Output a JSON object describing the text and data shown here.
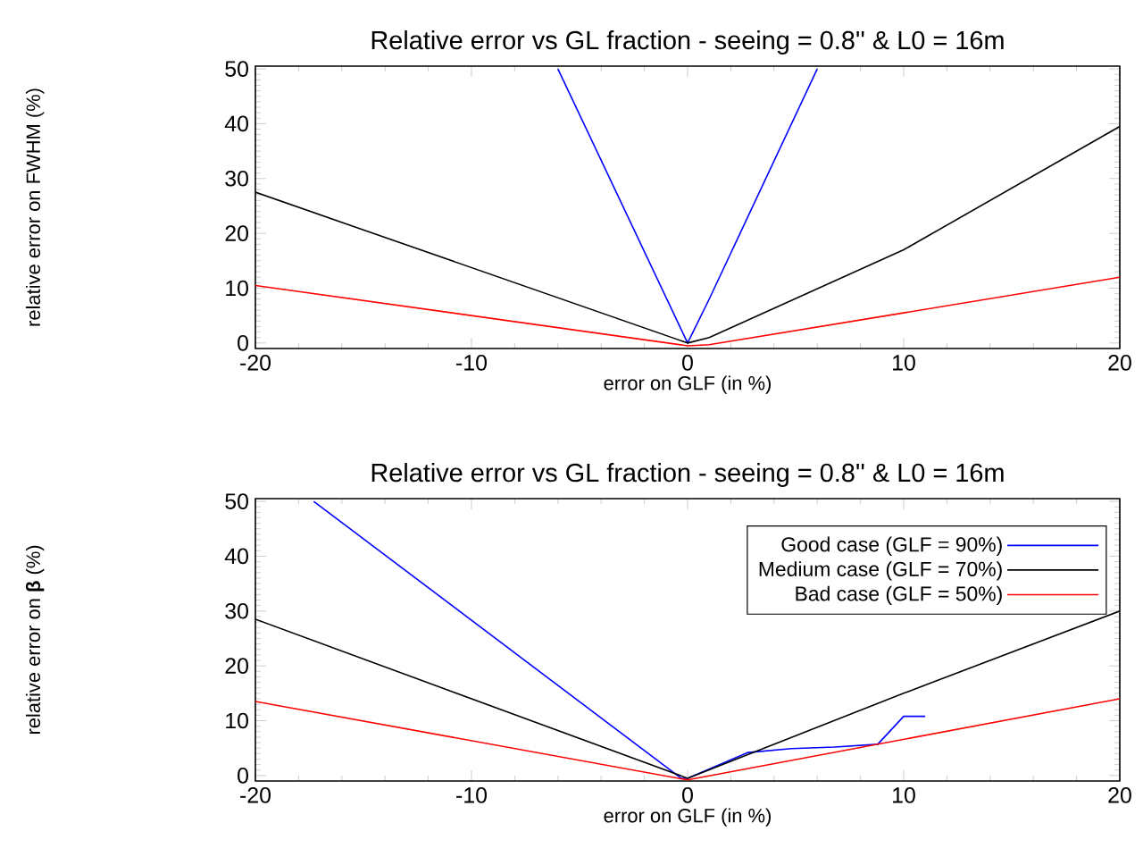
{
  "chart_data": [
    {
      "type": "line",
      "title": "Relative error vs GL fraction - seeing = 0.8'' & L0 = 16m",
      "xlabel": "error on GLF (in %)",
      "ylabel": "relative error on FWHM (%)",
      "xlim": [
        -20,
        20
      ],
      "xticks": [
        -20,
        -10,
        0,
        10,
        20
      ],
      "ylim": [
        -1,
        50.5
      ],
      "yticks": [
        0,
        10,
        20,
        30,
        40,
        50
      ],
      "grid": false,
      "legend": false,
      "marker": "none",
      "line_style": "solid",
      "series": [
        {
          "color": "#0000ff",
          "x": [
            -6,
            0,
            1,
            6
          ],
          "values": [
            50,
            0,
            8,
            50
          ]
        },
        {
          "color": "#000000",
          "x": [
            -20,
            0,
            1,
            10,
            20
          ],
          "values": [
            27.5,
            0,
            1,
            17,
            39.5
          ]
        },
        {
          "color": "#ff0000",
          "x": [
            -20,
            0,
            1,
            10,
            20
          ],
          "values": [
            10.5,
            -0.5,
            -0.3,
            5.5,
            12
          ]
        }
      ]
    },
    {
      "type": "line",
      "title": "Relative error vs GL fraction - seeing = 0.8'' & L0 = 16m",
      "xlabel": "error on GLF (in %)",
      "ylabel": "relative error on **β** (%)",
      "xlim": [
        -20,
        20
      ],
      "xticks": [
        -20,
        -10,
        0,
        10,
        20
      ],
      "ylim": [
        -1,
        50.5
      ],
      "yticks": [
        0,
        10,
        20,
        30,
        40,
        50
      ],
      "grid": false,
      "legend": "top right",
      "marker": "none",
      "line_style": "solid",
      "series": [
        {
          "name": "Good case (GLF = 90%)",
          "color": "#0000ff",
          "x": [
            -17.3,
            -0.3,
            0,
            2.8,
            4.8,
            6.8,
            8.8,
            10,
            11
          ],
          "values": [
            50,
            -0.5,
            -0.5,
            4.2,
            4.9,
            5.2,
            5.7,
            10.8,
            10.8
          ]
        },
        {
          "name": "Medium case (GLF = 70%)",
          "color": "#000000",
          "x": [
            -20,
            0,
            10,
            20
          ],
          "values": [
            28.5,
            -0.5,
            15,
            30
          ]
        },
        {
          "name": "Bad case (GLF = 50%)",
          "color": "#ff0000",
          "x": [
            -20,
            0,
            20
          ],
          "values": [
            13.5,
            -0.8,
            14
          ]
        }
      ]
    }
  ]
}
